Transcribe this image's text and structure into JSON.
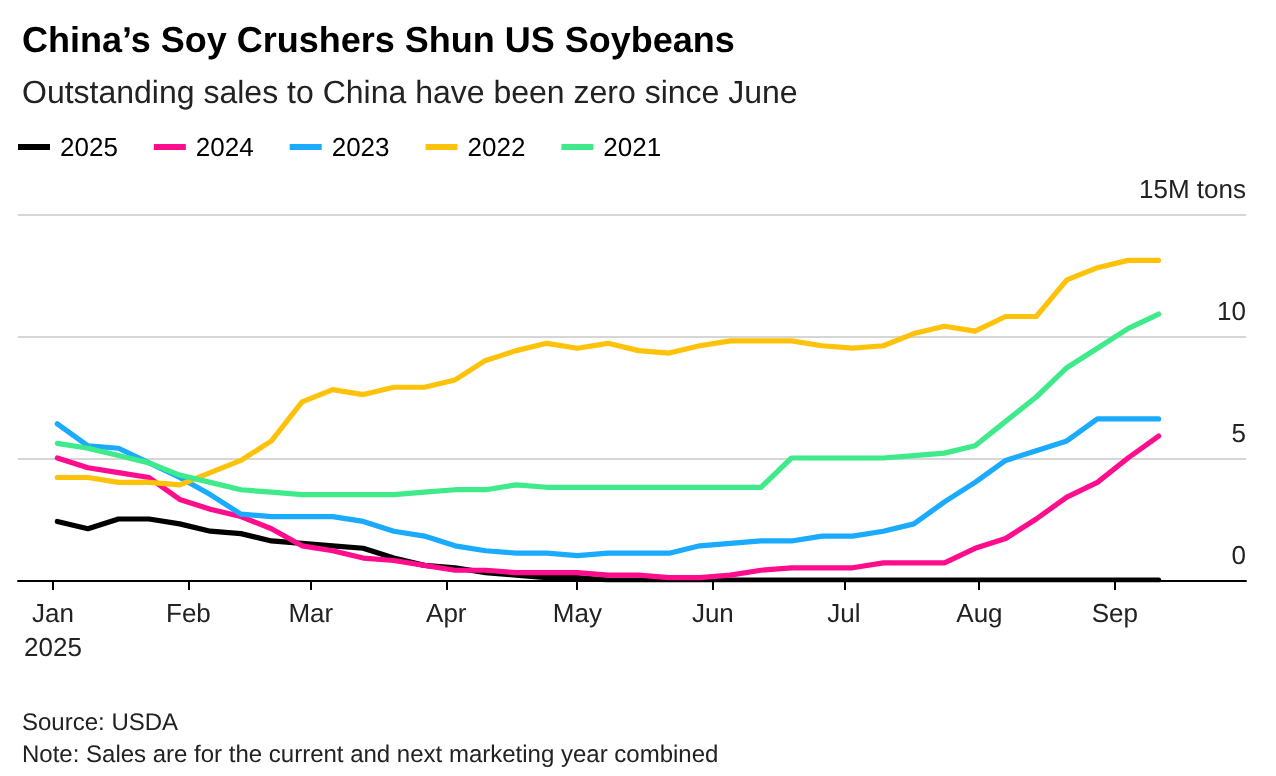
{
  "chart_data": {
    "type": "line",
    "title": "China’s Soy Crushers Shun US Soybeans",
    "subtitle": "Outstanding sales to China have been zero since June",
    "annotations": [
      "Source: USDA",
      "Note: Sales are for the current and next marketing year combined"
    ],
    "x": [
      "2025-01-02",
      "2025-01-09",
      "2025-01-16",
      "2025-01-23",
      "2025-01-30",
      "2025-02-06",
      "2025-02-13",
      "2025-02-20",
      "2025-02-27",
      "2025-03-06",
      "2025-03-13",
      "2025-03-20",
      "2025-03-27",
      "2025-04-03",
      "2025-04-10",
      "2025-04-17",
      "2025-04-24",
      "2025-05-01",
      "2025-05-08",
      "2025-05-15",
      "2025-05-22",
      "2025-05-29",
      "2025-06-05",
      "2025-06-12",
      "2025-06-19",
      "2025-06-26",
      "2025-07-03",
      "2025-07-10",
      "2025-07-17",
      "2025-07-24",
      "2025-07-31",
      "2025-08-07",
      "2025-08-14",
      "2025-08-21",
      "2025-08-28",
      "2025-09-04",
      "2025-09-11"
    ],
    "series": [
      {
        "name": "2025",
        "color": "#000000",
        "values": [
          2.4,
          2.1,
          2.5,
          2.5,
          2.3,
          2.0,
          1.9,
          1.6,
          1.5,
          1.4,
          1.3,
          0.9,
          0.6,
          0.5,
          0.3,
          0.2,
          0.1,
          0.1,
          0,
          0,
          0,
          0,
          0,
          0,
          0,
          0,
          0,
          0,
          0,
          0,
          0,
          0,
          0,
          0,
          0,
          0,
          0
        ]
      },
      {
        "name": "2024",
        "color": "#ff0d8c",
        "values": [
          5.0,
          4.6,
          4.4,
          4.2,
          3.3,
          2.9,
          2.6,
          2.1,
          1.4,
          1.2,
          0.9,
          0.8,
          0.6,
          0.4,
          0.4,
          0.3,
          0.3,
          0.3,
          0.2,
          0.2,
          0.1,
          0.1,
          0.2,
          0.4,
          0.5,
          0.5,
          0.5,
          0.7,
          0.7,
          0.7,
          1.3,
          1.7,
          2.5,
          3.4,
          4.0,
          5.0,
          5.9
        ]
      },
      {
        "name": "2023",
        "color": "#1aabff",
        "values": [
          6.4,
          5.5,
          5.4,
          4.8,
          4.2,
          3.5,
          2.7,
          2.6,
          2.6,
          2.6,
          2.4,
          2.0,
          1.8,
          1.4,
          1.2,
          1.1,
          1.1,
          1.0,
          1.1,
          1.1,
          1.1,
          1.4,
          1.5,
          1.6,
          1.6,
          1.8,
          1.8,
          2.0,
          2.3,
          3.2,
          4.0,
          4.9,
          5.3,
          5.7,
          6.6,
          6.6,
          6.6
        ]
      },
      {
        "name": "2022",
        "color": "#ffc20a",
        "values": [
          4.2,
          4.2,
          4.0,
          4.0,
          3.9,
          4.4,
          4.9,
          5.7,
          7.3,
          7.8,
          7.6,
          7.9,
          7.9,
          8.2,
          9.0,
          9.4,
          9.7,
          9.5,
          9.7,
          9.4,
          9.3,
          9.6,
          9.8,
          9.8,
          9.8,
          9.6,
          9.5,
          9.6,
          10.1,
          10.4,
          10.2,
          10.8,
          10.8,
          12.3,
          12.8,
          13.1,
          13.1
        ]
      },
      {
        "name": "2021",
        "color": "#3eea8a",
        "values": [
          5.6,
          5.4,
          5.1,
          4.8,
          4.3,
          4.0,
          3.7,
          3.6,
          3.5,
          3.5,
          3.5,
          3.5,
          3.6,
          3.7,
          3.7,
          3.9,
          3.8,
          3.8,
          3.8,
          3.8,
          3.8,
          3.8,
          3.8,
          3.8,
          5.0,
          5.0,
          5.0,
          5.0,
          5.1,
          5.2,
          5.5,
          6.5,
          7.5,
          8.7,
          9.5,
          10.3,
          10.9
        ]
      }
    ],
    "xlim": [
      "2024-12-24",
      "2025-10-01"
    ],
    "xticks": [
      {
        "value": "2025-01-01",
        "label": "Jan\n2025"
      },
      {
        "value": "2025-02-01",
        "label": "Feb"
      },
      {
        "value": "2025-03-01",
        "label": "Mar"
      },
      {
        "value": "2025-04-01",
        "label": "Apr"
      },
      {
        "value": "2025-05-01",
        "label": "May"
      },
      {
        "value": "2025-06-01",
        "label": "Jun"
      },
      {
        "value": "2025-07-01",
        "label": "Jul"
      },
      {
        "value": "2025-08-01",
        "label": "Aug"
      },
      {
        "value": "2025-09-01",
        "label": "Sep"
      }
    ],
    "ylim": [
      0,
      15
    ],
    "yticks": [
      0,
      5,
      10,
      {
        "value": 15,
        "label": "15M tons"
      }
    ],
    "grid": "y",
    "legend": "top left",
    "line_style": "solid",
    "marker": "none"
  }
}
